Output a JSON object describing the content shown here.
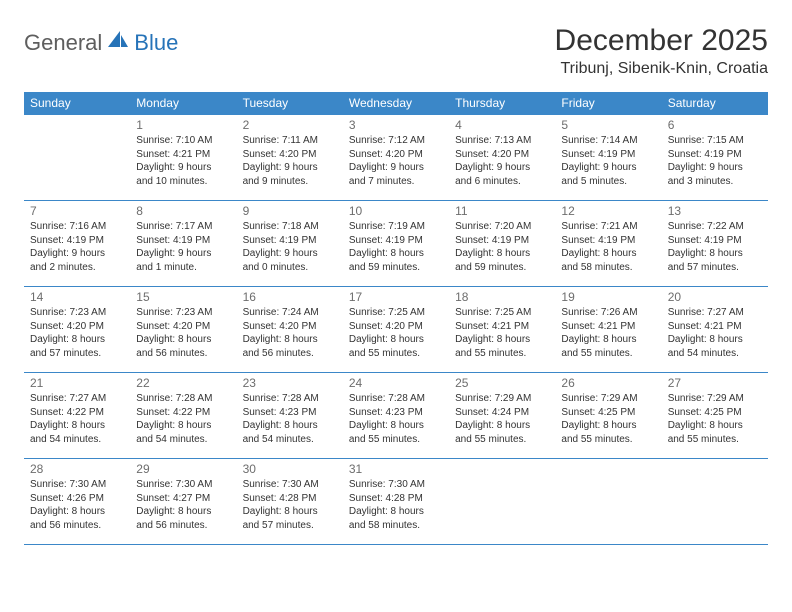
{
  "brand": {
    "text1": "General",
    "text2": "Blue",
    "icon_color": "#2673b8"
  },
  "title": "December 2025",
  "location": "Tribunj, Sibenik-Knin, Croatia",
  "theme": {
    "header_bg": "#3b87c8",
    "header_fg": "#ffffff",
    "border": "#3b87c8",
    "daynum_color": "#6d6d6d",
    "text_color": "#333333",
    "bg": "#ffffff",
    "day_fontsize": 12,
    "body_fontsize": 10,
    "title_fontsize": 30
  },
  "weekdays": [
    "Sunday",
    "Monday",
    "Tuesday",
    "Wednesday",
    "Thursday",
    "Friday",
    "Saturday"
  ],
  "weeks": [
    [
      null,
      {
        "d": "1",
        "sr": "Sunrise: 7:10 AM",
        "ss": "Sunset: 4:21 PM",
        "dl1": "Daylight: 9 hours",
        "dl2": "and 10 minutes."
      },
      {
        "d": "2",
        "sr": "Sunrise: 7:11 AM",
        "ss": "Sunset: 4:20 PM",
        "dl1": "Daylight: 9 hours",
        "dl2": "and 9 minutes."
      },
      {
        "d": "3",
        "sr": "Sunrise: 7:12 AM",
        "ss": "Sunset: 4:20 PM",
        "dl1": "Daylight: 9 hours",
        "dl2": "and 7 minutes."
      },
      {
        "d": "4",
        "sr": "Sunrise: 7:13 AM",
        "ss": "Sunset: 4:20 PM",
        "dl1": "Daylight: 9 hours",
        "dl2": "and 6 minutes."
      },
      {
        "d": "5",
        "sr": "Sunrise: 7:14 AM",
        "ss": "Sunset: 4:19 PM",
        "dl1": "Daylight: 9 hours",
        "dl2": "and 5 minutes."
      },
      {
        "d": "6",
        "sr": "Sunrise: 7:15 AM",
        "ss": "Sunset: 4:19 PM",
        "dl1": "Daylight: 9 hours",
        "dl2": "and 3 minutes."
      }
    ],
    [
      {
        "d": "7",
        "sr": "Sunrise: 7:16 AM",
        "ss": "Sunset: 4:19 PM",
        "dl1": "Daylight: 9 hours",
        "dl2": "and 2 minutes."
      },
      {
        "d": "8",
        "sr": "Sunrise: 7:17 AM",
        "ss": "Sunset: 4:19 PM",
        "dl1": "Daylight: 9 hours",
        "dl2": "and 1 minute."
      },
      {
        "d": "9",
        "sr": "Sunrise: 7:18 AM",
        "ss": "Sunset: 4:19 PM",
        "dl1": "Daylight: 9 hours",
        "dl2": "and 0 minutes."
      },
      {
        "d": "10",
        "sr": "Sunrise: 7:19 AM",
        "ss": "Sunset: 4:19 PM",
        "dl1": "Daylight: 8 hours",
        "dl2": "and 59 minutes."
      },
      {
        "d": "11",
        "sr": "Sunrise: 7:20 AM",
        "ss": "Sunset: 4:19 PM",
        "dl1": "Daylight: 8 hours",
        "dl2": "and 59 minutes."
      },
      {
        "d": "12",
        "sr": "Sunrise: 7:21 AM",
        "ss": "Sunset: 4:19 PM",
        "dl1": "Daylight: 8 hours",
        "dl2": "and 58 minutes."
      },
      {
        "d": "13",
        "sr": "Sunrise: 7:22 AM",
        "ss": "Sunset: 4:19 PM",
        "dl1": "Daylight: 8 hours",
        "dl2": "and 57 minutes."
      }
    ],
    [
      {
        "d": "14",
        "sr": "Sunrise: 7:23 AM",
        "ss": "Sunset: 4:20 PM",
        "dl1": "Daylight: 8 hours",
        "dl2": "and 57 minutes."
      },
      {
        "d": "15",
        "sr": "Sunrise: 7:23 AM",
        "ss": "Sunset: 4:20 PM",
        "dl1": "Daylight: 8 hours",
        "dl2": "and 56 minutes."
      },
      {
        "d": "16",
        "sr": "Sunrise: 7:24 AM",
        "ss": "Sunset: 4:20 PM",
        "dl1": "Daylight: 8 hours",
        "dl2": "and 56 minutes."
      },
      {
        "d": "17",
        "sr": "Sunrise: 7:25 AM",
        "ss": "Sunset: 4:20 PM",
        "dl1": "Daylight: 8 hours",
        "dl2": "and 55 minutes."
      },
      {
        "d": "18",
        "sr": "Sunrise: 7:25 AM",
        "ss": "Sunset: 4:21 PM",
        "dl1": "Daylight: 8 hours",
        "dl2": "and 55 minutes."
      },
      {
        "d": "19",
        "sr": "Sunrise: 7:26 AM",
        "ss": "Sunset: 4:21 PM",
        "dl1": "Daylight: 8 hours",
        "dl2": "and 55 minutes."
      },
      {
        "d": "20",
        "sr": "Sunrise: 7:27 AM",
        "ss": "Sunset: 4:21 PM",
        "dl1": "Daylight: 8 hours",
        "dl2": "and 54 minutes."
      }
    ],
    [
      {
        "d": "21",
        "sr": "Sunrise: 7:27 AM",
        "ss": "Sunset: 4:22 PM",
        "dl1": "Daylight: 8 hours",
        "dl2": "and 54 minutes."
      },
      {
        "d": "22",
        "sr": "Sunrise: 7:28 AM",
        "ss": "Sunset: 4:22 PM",
        "dl1": "Daylight: 8 hours",
        "dl2": "and 54 minutes."
      },
      {
        "d": "23",
        "sr": "Sunrise: 7:28 AM",
        "ss": "Sunset: 4:23 PM",
        "dl1": "Daylight: 8 hours",
        "dl2": "and 54 minutes."
      },
      {
        "d": "24",
        "sr": "Sunrise: 7:28 AM",
        "ss": "Sunset: 4:23 PM",
        "dl1": "Daylight: 8 hours",
        "dl2": "and 55 minutes."
      },
      {
        "d": "25",
        "sr": "Sunrise: 7:29 AM",
        "ss": "Sunset: 4:24 PM",
        "dl1": "Daylight: 8 hours",
        "dl2": "and 55 minutes."
      },
      {
        "d": "26",
        "sr": "Sunrise: 7:29 AM",
        "ss": "Sunset: 4:25 PM",
        "dl1": "Daylight: 8 hours",
        "dl2": "and 55 minutes."
      },
      {
        "d": "27",
        "sr": "Sunrise: 7:29 AM",
        "ss": "Sunset: 4:25 PM",
        "dl1": "Daylight: 8 hours",
        "dl2": "and 55 minutes."
      }
    ],
    [
      {
        "d": "28",
        "sr": "Sunrise: 7:30 AM",
        "ss": "Sunset: 4:26 PM",
        "dl1": "Daylight: 8 hours",
        "dl2": "and 56 minutes."
      },
      {
        "d": "29",
        "sr": "Sunrise: 7:30 AM",
        "ss": "Sunset: 4:27 PM",
        "dl1": "Daylight: 8 hours",
        "dl2": "and 56 minutes."
      },
      {
        "d": "30",
        "sr": "Sunrise: 7:30 AM",
        "ss": "Sunset: 4:28 PM",
        "dl1": "Daylight: 8 hours",
        "dl2": "and 57 minutes."
      },
      {
        "d": "31",
        "sr": "Sunrise: 7:30 AM",
        "ss": "Sunset: 4:28 PM",
        "dl1": "Daylight: 8 hours",
        "dl2": "and 58 minutes."
      },
      null,
      null,
      null
    ]
  ]
}
